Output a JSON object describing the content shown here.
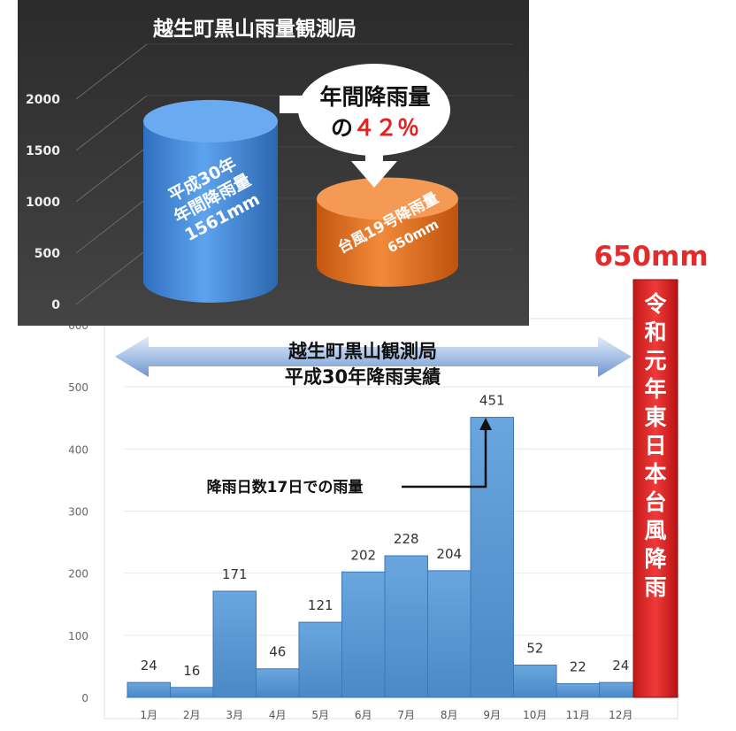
{
  "chart_data": [
    {
      "type": "bar",
      "title": "越生町黒山雨量観測局",
      "yticks": [
        "2000",
        "1500",
        "1000",
        "500",
        "0"
      ],
      "ylim": [
        0,
        2000
      ],
      "categories": [
        "平成30年年間降雨量",
        "台風19号降雨量"
      ],
      "values": [
        1561,
        650
      ],
      "bar_labels": [
        [
          "平成30年",
          "年間降雨量",
          "1561mm"
        ],
        [
          "台風19号降雨量",
          "650mm"
        ]
      ],
      "callout": {
        "line1": "年間降雨量",
        "prefix": "の",
        "ratio": "４２％"
      },
      "colors": {
        "bar1": "#3f86d6",
        "bar2": "#e86f1b",
        "background": "#3a3a3a"
      }
    },
    {
      "type": "bar",
      "title": "越生町黒山観測局",
      "subtitle": "平成30年降雨実績",
      "categories": [
        "1月",
        "2月",
        "3月",
        "4月",
        "5月",
        "6月",
        "7月",
        "8月",
        "9月",
        "10月",
        "11月",
        "12月"
      ],
      "values": [
        24,
        16,
        171,
        46,
        121,
        202,
        228,
        204,
        451,
        52,
        22,
        24
      ],
      "yticks": [
        "600",
        "500",
        "400",
        "300",
        "200",
        "100",
        "0"
      ],
      "ylim": [
        0,
        600
      ],
      "annotation": "降雨日数17日での雨量",
      "typhoon_bar": {
        "label": "令和元年東日本台風降雨",
        "value_label": "650mm",
        "color": "#e32b2b"
      },
      "colors": {
        "bar": "#5b9bd5",
        "edge": "#3a78b8"
      }
    }
  ]
}
